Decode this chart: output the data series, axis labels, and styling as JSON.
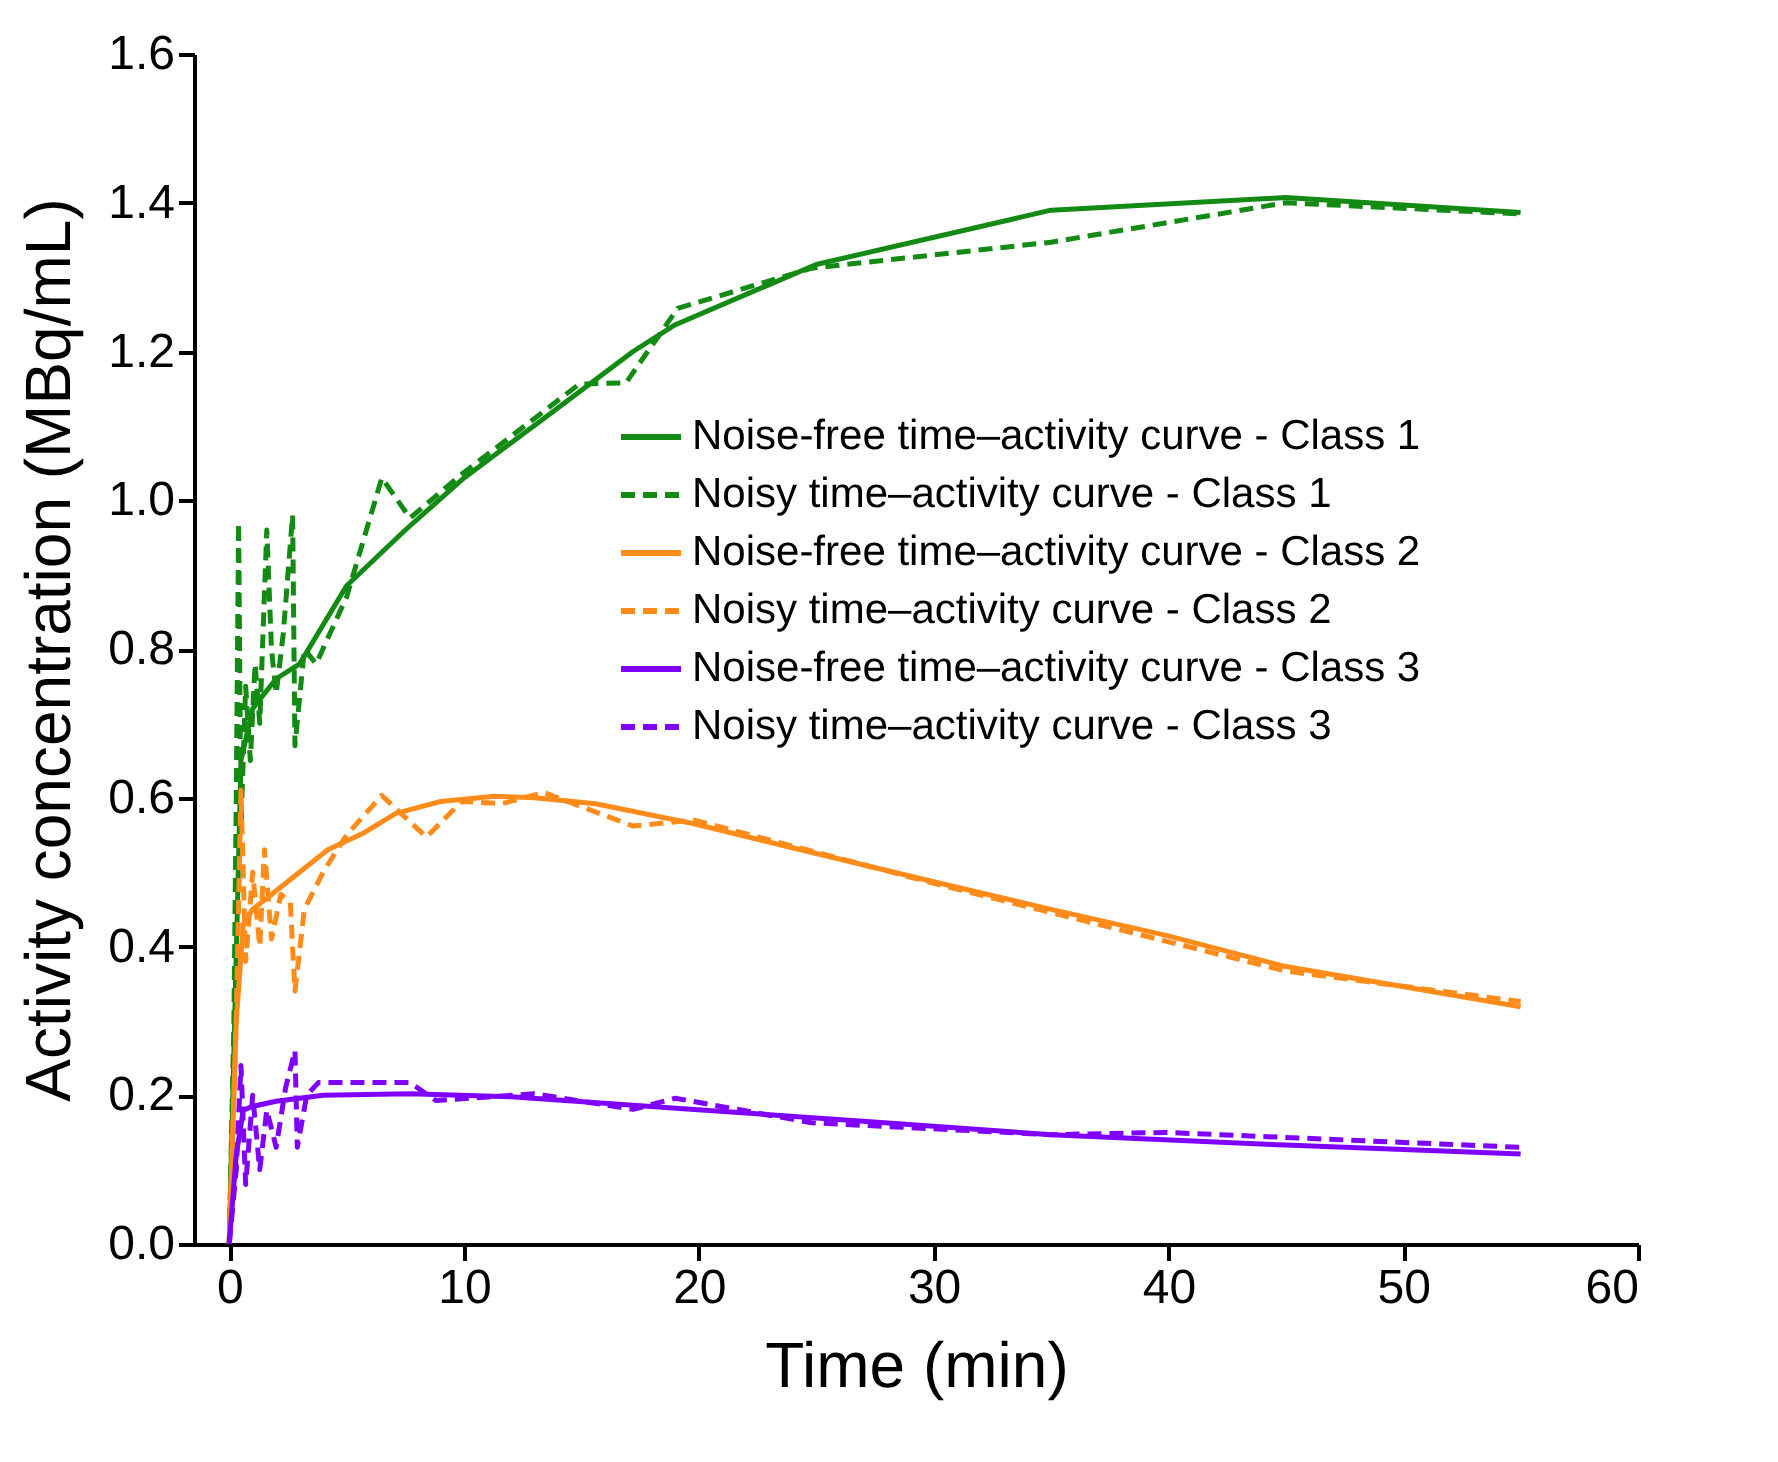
{
  "chart_data": {
    "type": "line",
    "xlabel": "Time (min)",
    "ylabel": "Activity concentration (MBq/mL)",
    "xlim": [
      -1.5,
      60
    ],
    "ylim": [
      0,
      1.6
    ],
    "xticks": [
      0,
      10,
      20,
      30,
      40,
      50,
      60
    ],
    "yticks": [
      {
        "value": 0,
        "label": "0.0"
      },
      0.2,
      0.4,
      0.6,
      0.8,
      {
        "value": 1,
        "label": "1.0"
      },
      1.2,
      1.4,
      1.6
    ],
    "grid": false,
    "legend": "right",
    "marker": "none",
    "series": [
      {
        "name": "Noise-free time–activity curve - Class 1",
        "color": "#138a13",
        "line_style": "solid",
        "x": [
          0,
          0.5,
          1,
          2,
          3,
          5,
          7.5,
          10,
          13.4,
          17.2,
          19,
          25,
          35,
          45,
          55
        ],
        "values": [
          0,
          0.65,
          0.72,
          0.76,
          0.78,
          0.885,
          0.96,
          1.03,
          1.11,
          1.2,
          1.236,
          1.317,
          1.39,
          1.407,
          1.387
        ]
      },
      {
        "name": "Noisy time–activity curve - Class 1",
        "color": "#138a13",
        "line_style": "dashed",
        "x": [
          0,
          0.2,
          0.3,
          0.4,
          0.5,
          0.7,
          0.9,
          1.1,
          1.3,
          1.6,
          1.8,
          2.0,
          2.3,
          2.7,
          2.8,
          3.2,
          3.7,
          5,
          6.5,
          7.7,
          9.9,
          14.9,
          16.9,
          19.1,
          24.8,
          35,
          45,
          55
        ],
        "values": [
          0,
          0.3,
          0.6,
          0.97,
          0.56,
          0.75,
          0.65,
          0.78,
          0.7,
          0.96,
          0.8,
          0.74,
          0.82,
          0.98,
          0.67,
          0.8,
          0.78,
          0.87,
          1.03,
          0.976,
          1.035,
          1.156,
          1.158,
          1.258,
          1.312,
          1.347,
          1.4,
          1.385
        ]
      },
      {
        "name": "Noise-free time–activity curve - Class 2",
        "color": "#ff8c1a",
        "line_style": "solid",
        "x": [
          0,
          0.3,
          0.6,
          1,
          2,
          4.2,
          5.75,
          7.1,
          9,
          11.3,
          13,
          15.6,
          19.8,
          25,
          30,
          35,
          39.9,
          45,
          55
        ],
        "values": [
          0,
          0.3,
          0.43,
          0.45,
          0.475,
          0.53,
          0.553,
          0.579,
          0.595,
          0.602,
          0.6,
          0.592,
          0.565,
          0.525,
          0.487,
          0.45,
          0.415,
          0.373,
          0.319
        ]
      },
      {
        "name": "Noisy time–activity curve - Class 2",
        "color": "#ff8c1a",
        "line_style": "dashed",
        "x": [
          0,
          0.3,
          0.5,
          0.7,
          1,
          1.3,
          1.5,
          1.8,
          2.2,
          2.6,
          2.8,
          3.2,
          4,
          5,
          6.5,
          8.4,
          9.9,
          11.6,
          13.4,
          17.2,
          19.8,
          30,
          45,
          55
        ],
        "values": [
          0,
          0.3,
          0.61,
          0.38,
          0.5,
          0.4,
          0.53,
          0.41,
          0.47,
          0.46,
          0.34,
          0.45,
          0.5,
          0.55,
          0.603,
          0.547,
          0.595,
          0.592,
          0.607,
          0.562,
          0.57,
          0.485,
          0.367,
          0.326
        ]
      },
      {
        "name": "Noise-free time–activity curve - Class 3",
        "color": "#8000ff",
        "line_style": "solid",
        "x": [
          0,
          0.3,
          0.6,
          1,
          2,
          4,
          7.7,
          12,
          19.8,
          27,
          35,
          45,
          55
        ],
        "values": [
          0,
          0.12,
          0.18,
          0.185,
          0.192,
          0.2,
          0.202,
          0.198,
          0.181,
          0.165,
          0.147,
          0.133,
          0.121
        ]
      },
      {
        "name": "Noisy time–activity curve - Class 3",
        "color": "#8000ff",
        "line_style": "dashed",
        "x": [
          0,
          0.3,
          0.5,
          0.7,
          1,
          1.3,
          1.6,
          2,
          2.4,
          2.8,
          2.9,
          3.3,
          3.8,
          7.7,
          8.8,
          13,
          17.2,
          19,
          24.8,
          35,
          39.9,
          55
        ],
        "values": [
          0,
          0.1,
          0.24,
          0.08,
          0.2,
          0.1,
          0.18,
          0.13,
          0.21,
          0.26,
          0.13,
          0.2,
          0.217,
          0.217,
          0.193,
          0.202,
          0.181,
          0.196,
          0.163,
          0.147,
          0.15,
          0.13
        ]
      }
    ]
  }
}
